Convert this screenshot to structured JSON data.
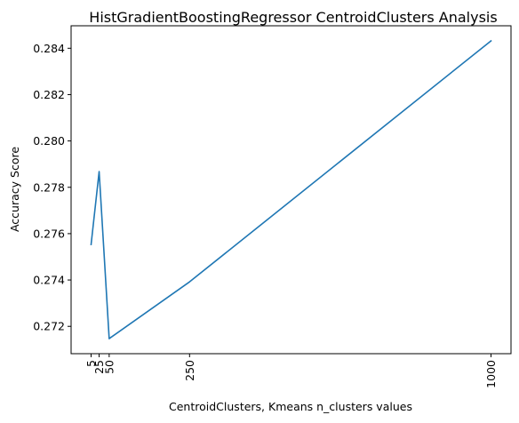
{
  "chart_data": {
    "type": "line",
    "title": "HistGradientBoostingRegressor CentroidClusters Analysis",
    "xlabel": "CentroidClusters, Kmeans n_clusters values",
    "ylabel": "Accuracy Score",
    "x": [
      5,
      25,
      50,
      250,
      1000
    ],
    "x_tick_labels": [
      "5",
      "25",
      "50",
      "250",
      "1000"
    ],
    "series": [
      {
        "values": [
          0.27553,
          0.27868,
          0.27147,
          0.27392,
          0.28432
        ],
        "color": "#1f77b4"
      }
    ],
    "y_ticks": [
      0.272,
      0.274,
      0.276,
      0.278,
      0.28,
      0.282,
      0.284
    ],
    "y_tick_labels": [
      "0.272",
      "0.274",
      "0.276",
      "0.278",
      "0.280",
      "0.282",
      "0.284"
    ],
    "xlim": [
      -44.75,
      1049.75
    ],
    "ylim": [
      0.27082,
      0.28497
    ],
    "grid": false,
    "legend": "none"
  }
}
